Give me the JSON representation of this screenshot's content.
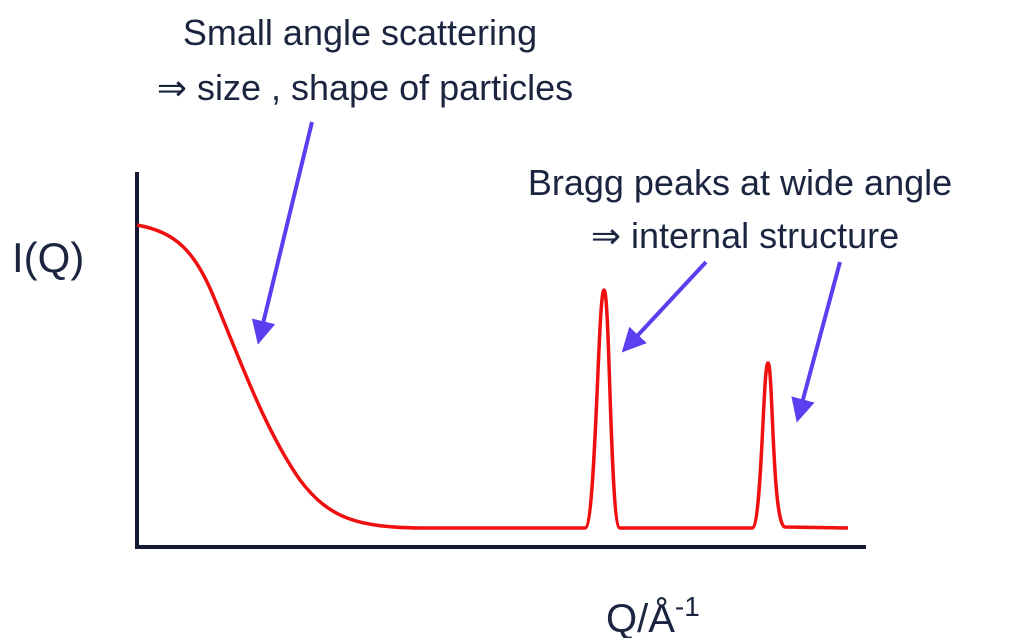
{
  "annotations": {
    "small_angle": {
      "line1": "Small angle scattering",
      "line2": "⇒ size , shape of particles"
    },
    "bragg": {
      "line1": "Bragg peaks at wide angle",
      "line2": "⇒ internal structure"
    }
  },
  "axes": {
    "y_label": "I(Q)",
    "x_label": {
      "text": "Q/Å",
      "superscript": "-1"
    }
  }
}
